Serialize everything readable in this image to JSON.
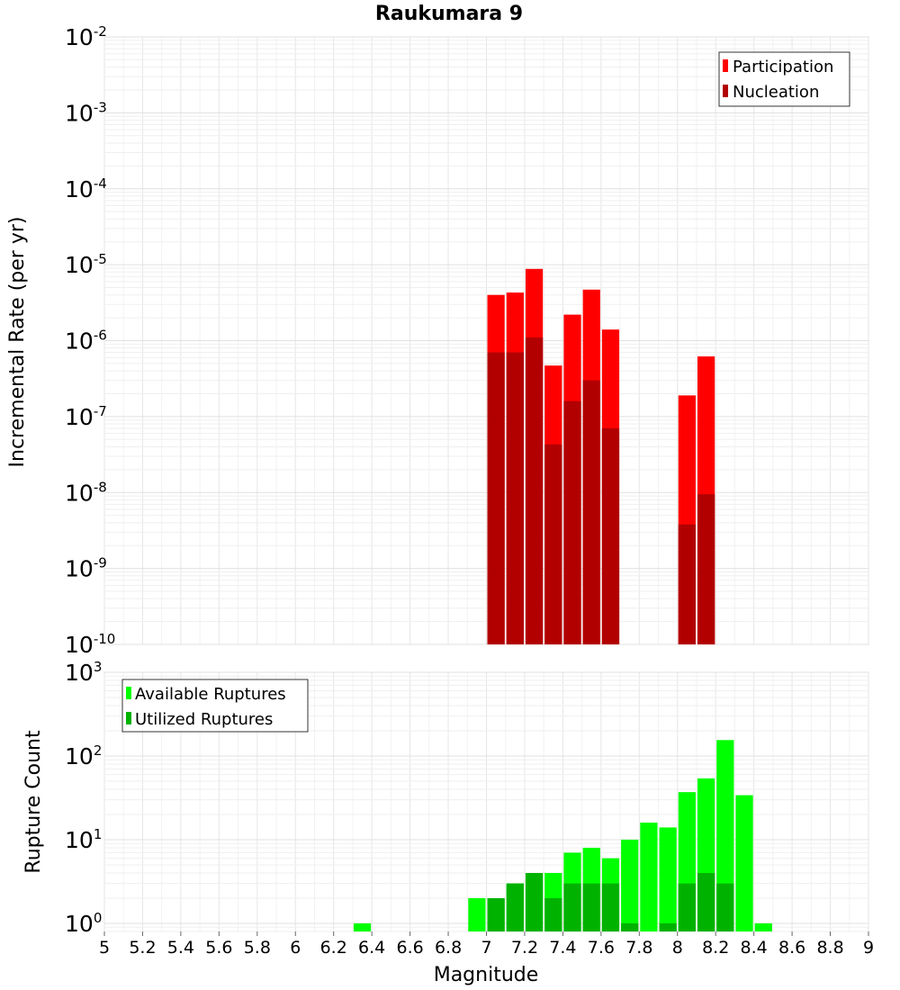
{
  "chart_data": [
    {
      "type": "bar",
      "title": "Raukumara 9",
      "xlabel": "",
      "ylabel": "Incremental Rate (per yr)",
      "yscale": "log",
      "xlim": [
        5,
        9
      ],
      "ylim": [
        1e-10,
        0.01
      ],
      "y_tick_exponents": [
        -10,
        -9,
        -8,
        -7,
        -6,
        -5,
        -4,
        -3,
        -2
      ],
      "grid": true,
      "legend_position": "top-right",
      "legend": [
        "Participation",
        "Nucleation"
      ],
      "bar_width": 0.1,
      "series": [
        {
          "name": "Participation",
          "color": "#ff0000",
          "x": [
            7.05,
            7.15,
            7.25,
            7.35,
            7.45,
            7.55,
            7.65,
            8.05,
            8.15
          ],
          "values": [
            4e-06,
            4.3e-06,
            8.8e-06,
            4.7e-07,
            2.2e-06,
            4.7e-06,
            1.4e-06,
            1.9e-07,
            6.2e-07
          ]
        },
        {
          "name": "Nucleation",
          "color": "#b20000",
          "x": [
            7.05,
            7.15,
            7.25,
            7.35,
            7.45,
            7.55,
            7.65,
            8.05,
            8.15
          ],
          "values": [
            7e-07,
            7e-07,
            1.1e-06,
            4.3e-08,
            1.6e-07,
            3e-07,
            7e-08,
            3.8e-09,
            9.5e-09
          ]
        }
      ]
    },
    {
      "type": "bar",
      "title": "",
      "xlabel": "Magnitude",
      "ylabel": "Rupture Count",
      "yscale": "log",
      "xlim": [
        5,
        9
      ],
      "ylim": [
        0.8,
        1000
      ],
      "y_tick_exponents": [
        0,
        1,
        2,
        3
      ],
      "x_ticks": [
        "5",
        "5.2",
        "5.4",
        "5.6",
        "5.8",
        "6",
        "6.2",
        "6.4",
        "6.6",
        "6.8",
        "7",
        "7.2",
        "7.4",
        "7.6",
        "7.8",
        "8",
        "8.2",
        "8.4",
        "8.6",
        "8.8",
        "9"
      ],
      "grid": true,
      "legend_position": "top-left",
      "legend": [
        "Available Ruptures",
        "Utilized Ruptures"
      ],
      "bar_width": 0.1,
      "series": [
        {
          "name": "Available Ruptures",
          "color": "#00ff00",
          "x": [
            6.35,
            6.95,
            7.05,
            7.15,
            7.25,
            7.35,
            7.45,
            7.55,
            7.65,
            7.75,
            7.85,
            7.95,
            8.05,
            8.15,
            8.25,
            8.35,
            8.45
          ],
          "values": [
            1,
            2,
            2,
            3,
            4,
            4,
            7,
            8,
            6,
            10,
            16,
            14,
            37,
            54,
            155,
            34,
            1
          ]
        },
        {
          "name": "Utilized Ruptures",
          "color": "#00b200",
          "x": [
            7.05,
            7.15,
            7.25,
            7.35,
            7.45,
            7.55,
            7.65,
            7.75,
            7.95,
            8.05,
            8.15,
            8.25
          ],
          "values": [
            2,
            3,
            4,
            2,
            3,
            3,
            3,
            1,
            1,
            3,
            4,
            3
          ]
        }
      ]
    }
  ]
}
